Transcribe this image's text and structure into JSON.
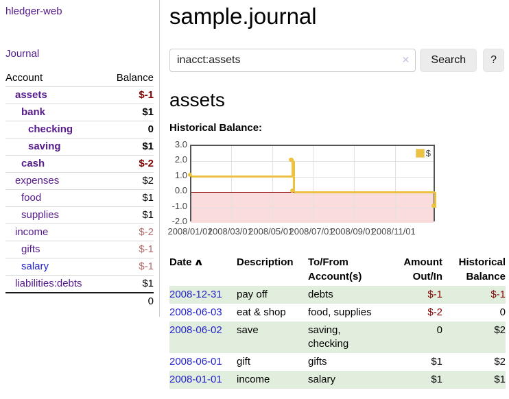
{
  "app": {
    "title": "hledger-web",
    "nav_journal": "Journal"
  },
  "sidebar": {
    "headers": {
      "account": "Account",
      "balance": "Balance"
    },
    "accounts": [
      {
        "name": "assets",
        "balance": "$-1",
        "depth": 0,
        "in_acct": true,
        "link_style": "visited",
        "balance_style": "neg-strong"
      },
      {
        "name": "bank",
        "balance": "$1",
        "depth": 1,
        "in_acct": true,
        "link_style": "visited",
        "balance_style": "plain-strong"
      },
      {
        "name": "checking",
        "balance": "0",
        "depth": 2,
        "in_acct": true,
        "link_style": "visited",
        "balance_style": "plain-strong"
      },
      {
        "name": "saving",
        "balance": "$1",
        "depth": 2,
        "in_acct": true,
        "link_style": "visited",
        "balance_style": "plain-strong"
      },
      {
        "name": "cash",
        "balance": "$-2",
        "depth": 1,
        "in_acct": true,
        "link_style": "visited",
        "balance_style": "neg-strong"
      },
      {
        "name": "expenses",
        "balance": "$2",
        "depth": 0,
        "in_acct": false,
        "link_style": "visited",
        "balance_style": "plain"
      },
      {
        "name": "food",
        "balance": "$1",
        "depth": 1,
        "in_acct": false,
        "link_style": "visited",
        "balance_style": "plain"
      },
      {
        "name": "supplies",
        "balance": "$1",
        "depth": 1,
        "in_acct": false,
        "link_style": "visited",
        "balance_style": "plain"
      },
      {
        "name": "income",
        "balance": "$-2",
        "depth": 0,
        "in_acct": false,
        "link_style": "visited",
        "balance_style": "neg-muted"
      },
      {
        "name": "gifts",
        "balance": "$-1",
        "depth": 1,
        "in_acct": false,
        "link_style": "visited",
        "balance_style": "neg-muted"
      },
      {
        "name": "salary",
        "balance": "$-1",
        "depth": 1,
        "in_acct": false,
        "link_style": "unvisited",
        "balance_style": "neg-muted"
      },
      {
        "name": "liabilities:debts",
        "balance": "$1",
        "depth": 0,
        "in_acct": false,
        "link_style": "visited",
        "balance_style": "plain"
      }
    ],
    "total": "0"
  },
  "header": {
    "title": "sample.journal"
  },
  "search": {
    "value": "inacct:assets",
    "clear_icon": "✕",
    "button_label": "Search",
    "help_label": "?"
  },
  "account_page": {
    "heading": "assets",
    "chart_label": "Historical Balance:"
  },
  "chart_data": {
    "type": "line",
    "title": "Historical Balance:",
    "step": true,
    "series": [
      {
        "name": "$",
        "color": "#edc240",
        "points": [
          [
            "2008-01-01",
            1
          ],
          [
            "2008-06-01",
            2
          ],
          [
            "2008-06-02",
            2
          ],
          [
            "2008-06-03",
            0
          ],
          [
            "2008-12-31",
            -1
          ]
        ]
      }
    ],
    "x_ticks": [
      "2008/01/01",
      "2008/03/01",
      "2008/05/01",
      "2008/07/01",
      "2008/09/01",
      "2008/11/01"
    ],
    "y_ticks": [
      3.0,
      2.0,
      1.0,
      0.0,
      -1.0,
      -2.0
    ],
    "ylim": [
      -2,
      3
    ],
    "xlim": [
      "2008-01-01",
      "2009-01-02"
    ],
    "legend": {
      "label": "$",
      "position": "top-right"
    },
    "grid": true,
    "negative_region_color": "#fbdcdc",
    "zero_line_color": "#8b0000"
  },
  "register": {
    "headers": {
      "date": "Date",
      "sort_icon": "∧",
      "description": "Description",
      "accounts": "To/From Account(s)",
      "amount": "Amount Out/In",
      "balance": "Historical Balance"
    },
    "rows": [
      {
        "date": "2008-12-31",
        "description": "pay off",
        "accounts": "debts",
        "amount": "$-1",
        "balance": "$-1"
      },
      {
        "date": "2008-06-03",
        "description": "eat & shop",
        "accounts": "food, supplies",
        "amount": "$-2",
        "balance": "0"
      },
      {
        "date": "2008-06-02",
        "description": "save",
        "accounts": "saving, checking",
        "amount": "0",
        "balance": "$2"
      },
      {
        "date": "2008-06-01",
        "description": "gift",
        "accounts": "gifts",
        "amount": "$1",
        "balance": "$2"
      },
      {
        "date": "2008-01-01",
        "description": "income",
        "accounts": "salary",
        "amount": "$1",
        "balance": "$1"
      }
    ]
  }
}
